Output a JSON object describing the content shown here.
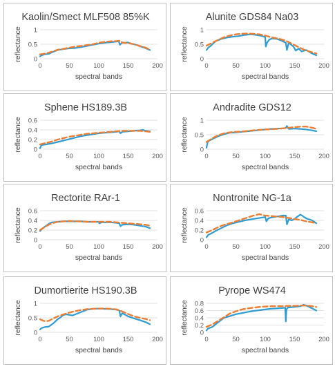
{
  "colors": {
    "measured": "#2e9bd2",
    "model": "#ed7d31",
    "grid": "#d9d9d9"
  },
  "chart_data": [
    {
      "type": "line",
      "title": "Kaolin/Smect MLF508 85%K",
      "xlabel": "spectral bands",
      "ylabel": "reflectance",
      "xlim": [
        0,
        200
      ],
      "xticks": [
        "0",
        "50",
        "100",
        "150",
        "200"
      ],
      "ylim": [
        0,
        1
      ],
      "yticks": [
        "0",
        "0.5",
        "1"
      ],
      "grid": "horizontal",
      "series": [
        {
          "style": "solid",
          "x": [
            0,
            3,
            8,
            15,
            20,
            30,
            40,
            50,
            60,
            70,
            80,
            90,
            100,
            110,
            120,
            125,
            130,
            134,
            136,
            140,
            145,
            150,
            155,
            160,
            165,
            170,
            175,
            180,
            187
          ],
          "y": [
            0.08,
            0.12,
            0.15,
            0.17,
            0.22,
            0.3,
            0.33,
            0.36,
            0.37,
            0.4,
            0.44,
            0.48,
            0.52,
            0.55,
            0.57,
            0.58,
            0.59,
            0.6,
            0.48,
            0.56,
            0.55,
            0.56,
            0.52,
            0.5,
            0.47,
            0.43,
            0.4,
            0.36,
            0.3
          ]
        },
        {
          "style": "dashed",
          "x": [
            0,
            10,
            20,
            30,
            40,
            50,
            60,
            70,
            80,
            90,
            100,
            110,
            120,
            130,
            137,
            140,
            150,
            160,
            170,
            180,
            188
          ],
          "y": [
            0.15,
            0.18,
            0.24,
            0.31,
            0.34,
            0.38,
            0.42,
            0.44,
            0.47,
            0.5,
            0.55,
            0.58,
            0.6,
            0.61,
            0.62,
            0.55,
            0.54,
            0.5,
            0.44,
            0.38,
            0.3
          ]
        }
      ]
    },
    {
      "type": "line",
      "title": "Alunite GDS84 Na03",
      "xlabel": "spectral bands",
      "ylabel": "reflectance",
      "xlim": [
        0,
        200
      ],
      "xticks": [
        "0",
        "50",
        "100",
        "150",
        "200"
      ],
      "ylim": [
        0,
        1
      ],
      "yticks": [
        "0",
        "0.5",
        "1"
      ],
      "grid": "horizontal",
      "series": [
        {
          "style": "solid",
          "x": [
            0,
            3,
            8,
            15,
            25,
            35,
            45,
            55,
            65,
            75,
            85,
            95,
            100,
            101,
            103,
            107,
            112,
            120,
            128,
            135,
            137,
            140,
            143,
            148,
            152,
            157,
            162,
            170,
            178,
            183,
            187
          ],
          "y": [
            0.3,
            0.38,
            0.46,
            0.6,
            0.68,
            0.73,
            0.76,
            0.78,
            0.82,
            0.84,
            0.82,
            0.78,
            0.74,
            0.42,
            0.55,
            0.66,
            0.7,
            0.68,
            0.62,
            0.55,
            0.3,
            0.55,
            0.5,
            0.42,
            0.28,
            0.35,
            0.25,
            0.3,
            0.2,
            0.15,
            0.12
          ]
        },
        {
          "style": "dashed",
          "x": [
            0,
            10,
            20,
            30,
            40,
            50,
            60,
            70,
            80,
            90,
            100,
            108,
            115,
            125,
            135,
            145,
            155,
            165,
            175,
            187
          ],
          "y": [
            0.45,
            0.55,
            0.65,
            0.74,
            0.8,
            0.84,
            0.86,
            0.87,
            0.86,
            0.84,
            0.8,
            0.75,
            0.72,
            0.68,
            0.62,
            0.52,
            0.42,
            0.32,
            0.25,
            0.18
          ]
        }
      ]
    },
    {
      "type": "line",
      "title": "Sphene HS189.3B",
      "xlabel": "spectral bands",
      "ylabel": "reflectance",
      "xlim": [
        0,
        200
      ],
      "xticks": [
        "0",
        "50",
        "100",
        "150",
        "200"
      ],
      "ylim": [
        0,
        0.6
      ],
      "yticks": [
        "0",
        "0.2",
        "0.4",
        "0.6"
      ],
      "grid": "horizontal",
      "series": [
        {
          "style": "solid",
          "x": [
            0,
            2,
            5,
            10,
            20,
            30,
            40,
            50,
            60,
            70,
            80,
            90,
            100,
            110,
            120,
            130,
            135,
            137,
            140,
            150,
            160,
            170,
            175,
            180,
            187
          ],
          "y": [
            0.02,
            0.08,
            0.09,
            0.1,
            0.12,
            0.15,
            0.18,
            0.21,
            0.24,
            0.27,
            0.29,
            0.31,
            0.33,
            0.34,
            0.35,
            0.36,
            0.37,
            0.33,
            0.36,
            0.37,
            0.38,
            0.39,
            0.4,
            0.38,
            0.37
          ]
        },
        {
          "style": "dashed",
          "x": [
            0,
            10,
            20,
            30,
            40,
            50,
            60,
            70,
            80,
            90,
            100,
            110,
            120,
            130,
            140,
            150,
            160,
            170,
            180,
            187
          ],
          "y": [
            0.1,
            0.13,
            0.16,
            0.2,
            0.23,
            0.26,
            0.28,
            0.3,
            0.32,
            0.33,
            0.34,
            0.35,
            0.36,
            0.37,
            0.38,
            0.38,
            0.38,
            0.38,
            0.37,
            0.36
          ]
        }
      ]
    },
    {
      "type": "line",
      "title": "Andradite GDS12",
      "xlabel": "spectral bands",
      "ylabel": "reflectance",
      "xlim": [
        0,
        200
      ],
      "xticks": [
        "0",
        "50",
        "100",
        "150",
        "200"
      ],
      "ylim": [
        0,
        1
      ],
      "yticks": [
        "0",
        "0.5",
        "1"
      ],
      "grid": "horizontal",
      "series": [
        {
          "style": "solid",
          "x": [
            0,
            2,
            5,
            10,
            20,
            30,
            40,
            50,
            60,
            70,
            80,
            90,
            100,
            110,
            120,
            130,
            135,
            137,
            140,
            150,
            160,
            170,
            180,
            187
          ],
          "y": [
            0.05,
            0.25,
            0.3,
            0.35,
            0.45,
            0.52,
            0.57,
            0.58,
            0.6,
            0.62,
            0.64,
            0.66,
            0.68,
            0.7,
            0.71,
            0.72,
            0.73,
            0.8,
            0.7,
            0.71,
            0.7,
            0.68,
            0.65,
            0.62
          ]
        },
        {
          "style": "dashed",
          "x": [
            0,
            10,
            20,
            30,
            40,
            50,
            60,
            70,
            80,
            90,
            100,
            110,
            120,
            130,
            140,
            150,
            160,
            170,
            180,
            187
          ],
          "y": [
            0.25,
            0.38,
            0.48,
            0.55,
            0.58,
            0.6,
            0.61,
            0.63,
            0.65,
            0.67,
            0.68,
            0.69,
            0.7,
            0.72,
            0.74,
            0.76,
            0.78,
            0.78,
            0.74,
            0.7
          ]
        }
      ]
    },
    {
      "type": "line",
      "title": "Rectorite RAr-1",
      "xlabel": "spectral bands",
      "ylabel": "reflectance",
      "xlim": [
        0,
        200
      ],
      "xticks": [
        "0",
        "50",
        "100",
        "150",
        "200"
      ],
      "ylim": [
        0,
        0.6
      ],
      "yticks": [
        "0",
        "0.2",
        "0.4",
        "0.6"
      ],
      "grid": "horizontal",
      "series": [
        {
          "style": "solid",
          "x": [
            0,
            3,
            8,
            15,
            20,
            30,
            40,
            50,
            60,
            70,
            80,
            90,
            100,
            101,
            105,
            110,
            120,
            130,
            135,
            137,
            140,
            150,
            160,
            170,
            180,
            187
          ],
          "y": [
            0.18,
            0.22,
            0.27,
            0.33,
            0.36,
            0.37,
            0.38,
            0.38,
            0.38,
            0.38,
            0.37,
            0.37,
            0.37,
            0.34,
            0.36,
            0.36,
            0.36,
            0.35,
            0.34,
            0.28,
            0.31,
            0.32,
            0.31,
            0.29,
            0.27,
            0.24
          ]
        },
        {
          "style": "dashed",
          "x": [
            0,
            10,
            20,
            30,
            40,
            50,
            60,
            70,
            80,
            90,
            100,
            110,
            120,
            130,
            140,
            150,
            160,
            170,
            180,
            187
          ],
          "y": [
            0.2,
            0.28,
            0.34,
            0.37,
            0.38,
            0.39,
            0.38,
            0.38,
            0.37,
            0.37,
            0.37,
            0.37,
            0.37,
            0.36,
            0.35,
            0.34,
            0.33,
            0.32,
            0.31,
            0.29
          ]
        }
      ]
    },
    {
      "type": "line",
      "title": "Nontronite NG-1a",
      "xlabel": "spectral bands",
      "ylabel": "reflectance",
      "xlim": [
        0,
        200
      ],
      "xticks": [
        "0",
        "50",
        "100",
        "150",
        "200"
      ],
      "ylim": [
        0,
        0.6
      ],
      "yticks": [
        "0",
        "0.2",
        "0.4",
        "0.6"
      ],
      "grid": "horizontal",
      "series": [
        {
          "style": "solid",
          "x": [
            0,
            3,
            8,
            15,
            25,
            35,
            45,
            55,
            65,
            75,
            85,
            95,
            100,
            102,
            105,
            110,
            120,
            130,
            135,
            137,
            140,
            145,
            150,
            155,
            160,
            165,
            170,
            175,
            180,
            187
          ],
          "y": [
            0.05,
            0.1,
            0.13,
            0.18,
            0.24,
            0.3,
            0.34,
            0.37,
            0.4,
            0.42,
            0.44,
            0.46,
            0.47,
            0.38,
            0.44,
            0.46,
            0.48,
            0.5,
            0.5,
            0.32,
            0.42,
            0.4,
            0.43,
            0.48,
            0.52,
            0.48,
            0.44,
            0.42,
            0.4,
            0.34
          ]
        },
        {
          "style": "dashed",
          "x": [
            0,
            10,
            20,
            30,
            40,
            50,
            60,
            70,
            80,
            90,
            100,
            110,
            120,
            130,
            140,
            150,
            160,
            170,
            180,
            187
          ],
          "y": [
            0.15,
            0.2,
            0.26,
            0.31,
            0.34,
            0.38,
            0.42,
            0.46,
            0.5,
            0.53,
            0.5,
            0.49,
            0.48,
            0.47,
            0.45,
            0.43,
            0.41,
            0.38,
            0.36,
            0.34
          ]
        }
      ]
    },
    {
      "type": "line",
      "title": "Dumortierite HS190.3B",
      "xlabel": "spectral bands",
      "ylabel": "reflectance",
      "xlim": [
        0,
        200
      ],
      "xticks": [
        "0",
        "50",
        "100",
        "150",
        "200"
      ],
      "ylim": [
        0,
        1
      ],
      "yticks": [
        "0",
        "0.5",
        "1"
      ],
      "grid": "horizontal",
      "series": [
        {
          "style": "solid",
          "x": [
            0,
            3,
            8,
            15,
            22,
            30,
            35,
            40,
            45,
            50,
            55,
            60,
            70,
            80,
            90,
            100,
            110,
            120,
            130,
            135,
            137,
            140,
            150,
            160,
            170,
            180,
            187
          ],
          "y": [
            0.1,
            0.15,
            0.18,
            0.2,
            0.3,
            0.45,
            0.52,
            0.6,
            0.62,
            0.6,
            0.58,
            0.62,
            0.7,
            0.78,
            0.81,
            0.82,
            0.81,
            0.8,
            0.78,
            0.75,
            0.55,
            0.66,
            0.55,
            0.48,
            0.42,
            0.35,
            0.28
          ]
        },
        {
          "style": "dashed",
          "x": [
            0,
            5,
            10,
            15,
            20,
            30,
            40,
            50,
            60,
            70,
            80,
            90,
            100,
            110,
            120,
            130,
            140,
            150,
            160,
            170,
            180,
            187
          ],
          "y": [
            0.45,
            0.4,
            0.38,
            0.4,
            0.45,
            0.55,
            0.62,
            0.68,
            0.73,
            0.77,
            0.8,
            0.81,
            0.82,
            0.82,
            0.81,
            0.79,
            0.72,
            0.63,
            0.55,
            0.5,
            0.46,
            0.42
          ]
        }
      ]
    },
    {
      "type": "line",
      "title": "Pyrope WS474",
      "xlabel": "spectral bands",
      "ylabel": "reflectance",
      "xlim": [
        0,
        200
      ],
      "xticks": [
        "0",
        "50",
        "100",
        "150",
        "200"
      ],
      "ylim": [
        0,
        0.8
      ],
      "yticks": [
        "0",
        "0.2",
        "0.4",
        "0.6",
        "0.8"
      ],
      "grid": "horizontal",
      "series": [
        {
          "style": "solid",
          "x": [
            0,
            2,
            5,
            10,
            20,
            30,
            40,
            50,
            60,
            70,
            80,
            90,
            100,
            110,
            120,
            130,
            134,
            135,
            136,
            138,
            142,
            150,
            160,
            165,
            170,
            175,
            180,
            187
          ],
          "y": [
            0.05,
            0.1,
            0.12,
            0.15,
            0.28,
            0.4,
            0.45,
            0.5,
            0.53,
            0.56,
            0.59,
            0.61,
            0.63,
            0.65,
            0.66,
            0.67,
            0.68,
            0.3,
            0.62,
            0.68,
            0.69,
            0.7,
            0.72,
            0.76,
            0.74,
            0.7,
            0.66,
            0.6
          ]
        },
        {
          "style": "dashed",
          "x": [
            0,
            10,
            20,
            30,
            40,
            50,
            60,
            70,
            80,
            90,
            100,
            110,
            120,
            130,
            140,
            150,
            160,
            170,
            180,
            187
          ],
          "y": [
            0.15,
            0.22,
            0.32,
            0.42,
            0.52,
            0.58,
            0.63,
            0.66,
            0.68,
            0.7,
            0.71,
            0.72,
            0.72,
            0.72,
            0.73,
            0.73,
            0.74,
            0.74,
            0.72,
            0.7
          ]
        }
      ]
    }
  ]
}
